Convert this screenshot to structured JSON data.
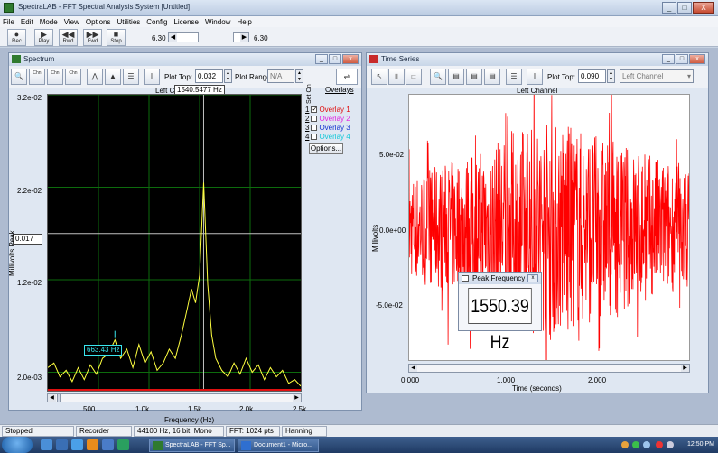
{
  "app": {
    "title": "SpectraLAB - FFT Spectral Analysis System [Untitled]",
    "window_controls": [
      "_",
      "□",
      "X"
    ]
  },
  "menu": [
    "File",
    "Edit",
    "Mode",
    "View",
    "Options",
    "Utilities",
    "Config",
    "License",
    "Window",
    "Help"
  ],
  "toolbar": {
    "buttons": [
      {
        "label": "Rec",
        "glyph": "●"
      },
      {
        "label": "Play",
        "glyph": "▶"
      },
      {
        "label": "Rwd",
        "glyph": "◀◀"
      },
      {
        "label": "Fwd",
        "glyph": "▶▶"
      },
      {
        "label": "Stop",
        "glyph": "■"
      }
    ],
    "position_left": "6.30",
    "position_right": "6.30"
  },
  "spectrum": {
    "title": "Spectrum",
    "plot_top_label": "Plot Top:",
    "plot_top_value": "0.032",
    "plot_range_label": "Plot Range:",
    "plot_range_value": "N/A",
    "icon_buttons": [
      "Chn",
      "Chn",
      "Chn"
    ],
    "channel_label": "Left Cl",
    "cursor_readout": "1540.5477 Hz",
    "y_cursor_value": "0.017",
    "annotation": "663.43 Hz",
    "overlays_title": "Overlays",
    "set_on_label": "Set On",
    "overlays": [
      {
        "num": "1",
        "label": "Overlay 1",
        "checked": true,
        "color": "#e01010"
      },
      {
        "num": "2",
        "label": "Overlay 2",
        "checked": false,
        "color": "#e020e0"
      },
      {
        "num": "3",
        "label": "Overlay 3",
        "checked": false,
        "color": "#1030d0"
      },
      {
        "num": "4",
        "label": "Overlay 4",
        "checked": false,
        "color": "#10c8d8"
      }
    ],
    "options_button": "Options...",
    "y_axis_label": "Millivolts Peak",
    "x_axis_label": "Frequency (Hz)"
  },
  "time_series": {
    "title": "Time Series",
    "plot_top_label": "Plot Top:",
    "plot_top_value": "0.090",
    "channel_select": "Left Channel",
    "chart_title": "Left Channel",
    "y_axis_label": "Millivolts",
    "x_axis_label": "Time (seconds)"
  },
  "peak_popup": {
    "title": "Peak Frequency",
    "value": "1550.39 Hz"
  },
  "status": {
    "mode": "Stopped",
    "recorder": "Recorder",
    "format": "44100 Hz, 16 bit, Mono",
    "fft": "FFT: 1024 pts",
    "window": "Hanning"
  },
  "taskbar": {
    "tasks": [
      "SpectraLAB - FFT Sp...",
      "Document1 - Micro..."
    ],
    "clock": "12:50 PM"
  },
  "colors": {
    "spectrum_trace": "#ffff40",
    "grid": "#0d6b0d",
    "time_trace": "#ff0000",
    "cursor": "#c0c0c0"
  },
  "chart_data": [
    {
      "type": "line",
      "title": "Left Channel",
      "xlabel": "Frequency (Hz)",
      "ylabel": "Millivolts Peak",
      "ytick_labels": [
        "3.2e-02",
        "2.2e-02",
        "1.2e-02",
        "2.0e-03"
      ],
      "xtick_labels": [
        "500",
        "1.0k",
        "1.5k",
        "2.0k",
        "2.5k"
      ],
      "xlim": [
        0,
        2500
      ],
      "ylim": [
        0,
        0.032
      ],
      "grid": true,
      "x": [
        0,
        60,
        120,
        180,
        240,
        300,
        360,
        420,
        480,
        540,
        600,
        663,
        720,
        780,
        840,
        900,
        960,
        1020,
        1080,
        1140,
        1200,
        1260,
        1320,
        1380,
        1420,
        1460,
        1500,
        1540,
        1580,
        1620,
        1660,
        1720,
        1780,
        1840,
        1900,
        1960,
        2020,
        2080,
        2140,
        2200,
        2260,
        2320,
        2380,
        2440,
        2500
      ],
      "y": [
        0.0025,
        0.003,
        0.0015,
        0.0022,
        0.001,
        0.0025,
        0.0012,
        0.0028,
        0.0018,
        0.0035,
        0.004,
        0.0055,
        0.0035,
        0.0045,
        0.0025,
        0.005,
        0.003,
        0.0042,
        0.0022,
        0.003,
        0.0045,
        0.0035,
        0.006,
        0.009,
        0.011,
        0.0095,
        0.0125,
        0.0225,
        0.0115,
        0.006,
        0.0035,
        0.0022,
        0.0015,
        0.003,
        0.0018,
        0.0035,
        0.002,
        0.0028,
        0.0012,
        0.0025,
        0.0015,
        0.0022,
        0.0008,
        0.0012,
        0.0005
      ]
    },
    {
      "type": "line",
      "title": "Left Channel",
      "xlabel": "Time (seconds)",
      "ylabel": "Millivolts",
      "ytick_labels": [
        "5.0e-02",
        "0.0e+00",
        "-5.0e-02"
      ],
      "xtick_labels": [
        "0.000",
        "1.000",
        "2.000"
      ],
      "xlim": [
        0,
        2.8
      ],
      "ylim": [
        -0.09,
        0.09
      ],
      "envelope_t": [
        0.0,
        0.2,
        0.4,
        0.6,
        0.8,
        1.0,
        1.2,
        1.4,
        1.6,
        1.8,
        2.0,
        2.2,
        2.4,
        2.6,
        2.8
      ],
      "envelope_amp": [
        0.035,
        0.04,
        0.045,
        0.05,
        0.055,
        0.065,
        0.07,
        0.075,
        0.07,
        0.065,
        0.06,
        0.055,
        0.05,
        0.045,
        0.04
      ]
    }
  ]
}
